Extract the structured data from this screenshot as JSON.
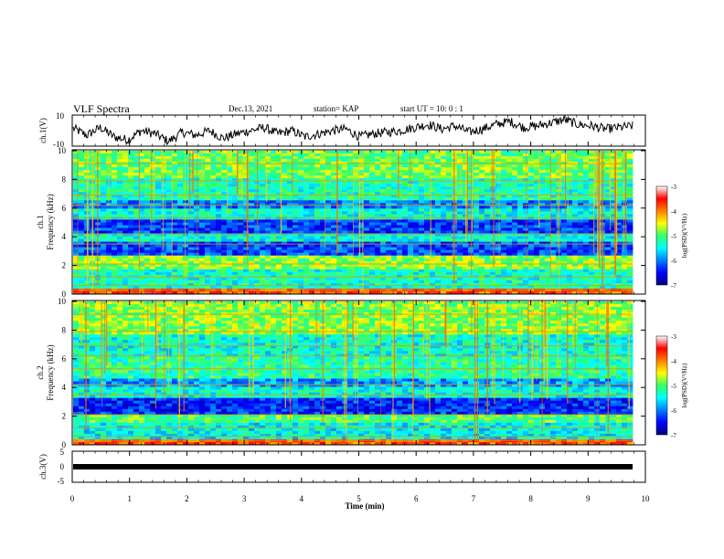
{
  "header": {
    "title": "VLF Spectra",
    "date": "Dec.13, 2021",
    "station": "station= KAP",
    "start": "start  UT =   10: 0  : 1"
  },
  "chart_data": [
    {
      "type": "line",
      "panel": "ch1-waveform",
      "ylabel": "ch.1(V)",
      "ylim": [
        -10,
        10
      ],
      "yticks": [
        "10",
        "-10"
      ],
      "xlim": [
        0,
        10
      ],
      "series": [
        {
          "values": [
            1.5,
            -3,
            2,
            -4,
            -6,
            0,
            -2,
            -7,
            -1,
            -3,
            0,
            -5,
            -2,
            0,
            2,
            -2,
            0,
            -4,
            -2,
            0,
            1,
            -4,
            -2,
            -1,
            0,
            2,
            4,
            1,
            3,
            -1,
            1,
            4,
            6,
            2,
            3,
            5,
            7,
            4,
            3,
            1,
            2,
            3
          ]
        }
      ]
    },
    {
      "type": "heatmap",
      "panel": "ch1-spectrogram",
      "ylabel": "Frequency (kHz)",
      "channel_label": "ch.1",
      "ylim": [
        0,
        10
      ],
      "yticks": [
        "0",
        "2",
        "4",
        "6",
        "8",
        "10"
      ],
      "xlim": [
        0,
        10
      ],
      "colorbar": {
        "label": "log(PSD)(V²/Hz)",
        "min": -7,
        "max": -3,
        "ticks": [
          "-3",
          "-4",
          "-5",
          "-6",
          "-7"
        ]
      }
    },
    {
      "type": "heatmap",
      "panel": "ch2-spectrogram",
      "ylabel": "Frequency (kHz)",
      "channel_label": "ch.2",
      "ylim": [
        0,
        10
      ],
      "yticks": [
        "0",
        "2",
        "4",
        "6",
        "8",
        "10"
      ],
      "xlim": [
        0,
        10
      ],
      "colorbar": {
        "label": "log(PSD)(V²/Hz)",
        "min": -7,
        "max": -3,
        "ticks": [
          "-3",
          "-4",
          "-5",
          "-6",
          "-7"
        ]
      }
    },
    {
      "type": "line",
      "panel": "ch3-signal",
      "ylabel": "ch.3(V)",
      "ylim": [
        -5,
        5
      ],
      "yticks": [
        "5",
        "0",
        "-5"
      ],
      "xlim": [
        0,
        10
      ],
      "xlabel": "Time  (min)",
      "xticks": [
        "0",
        "1",
        "2",
        "3",
        "4",
        "5",
        "6",
        "7",
        "8",
        "9",
        "10"
      ]
    }
  ]
}
